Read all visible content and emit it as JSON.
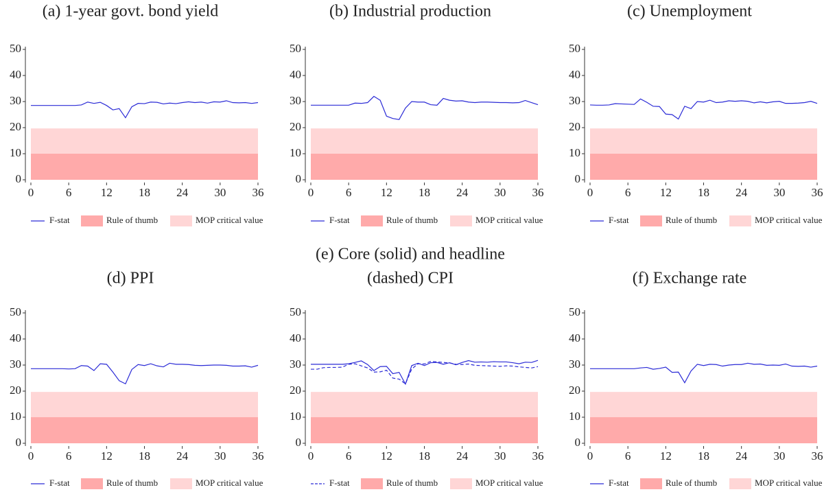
{
  "chart_data": [
    {
      "type": "line",
      "title": [
        "(a) 1-year govt. bond yield"
      ],
      "x": [
        0,
        1,
        2,
        3,
        4,
        5,
        6,
        7,
        8,
        9,
        10,
        11,
        12,
        13,
        14,
        15,
        16,
        17,
        18,
        19,
        20,
        21,
        22,
        23,
        24,
        25,
        26,
        27,
        28,
        29,
        30,
        31,
        32,
        33,
        34,
        35,
        36
      ],
      "series": [
        {
          "name": "F-stat",
          "color": "#2a2ad6",
          "values": [
            28.5,
            28.5,
            28.5,
            28.5,
            28.5,
            28.5,
            28.5,
            28.5,
            28.7,
            29.8,
            29.3,
            29.7,
            28.5,
            26.8,
            27.3,
            23.8,
            28,
            29.3,
            29.2,
            29.8,
            29.7,
            29.1,
            29.4,
            29.2,
            29.6,
            29.9,
            29.6,
            29.8,
            29.4,
            29.9,
            29.8,
            30.3,
            29.6,
            29.5,
            29.6,
            29.3,
            29.6
          ]
        }
      ],
      "bands": [
        {
          "name": "Rule of thumb",
          "color": "#ffaaaa",
          "value": 10
        },
        {
          "name": "MOP critical value",
          "color": "#ffd6d6",
          "value": 19.7
        }
      ],
      "xlim": [
        0,
        36
      ],
      "xticks": [
        0,
        6,
        12,
        18,
        24,
        30,
        36
      ],
      "ylim": [
        0,
        50
      ],
      "yticks": [
        0,
        10,
        20,
        30,
        40,
        50
      ]
    },
    {
      "type": "line",
      "title": [
        "(b) Industrial production"
      ],
      "x": [
        0,
        1,
        2,
        3,
        4,
        5,
        6,
        7,
        8,
        9,
        10,
        11,
        12,
        13,
        14,
        15,
        16,
        17,
        18,
        19,
        20,
        21,
        22,
        23,
        24,
        25,
        26,
        27,
        28,
        29,
        30,
        31,
        32,
        33,
        34,
        35,
        36
      ],
      "series": [
        {
          "name": "F-stat",
          "color": "#2a2ad6",
          "values": [
            28.6,
            28.6,
            28.6,
            28.6,
            28.6,
            28.6,
            28.6,
            29.4,
            29.3,
            29.6,
            32,
            30.5,
            24.4,
            23.5,
            23.1,
            27.5,
            30,
            29.8,
            29.8,
            28.8,
            28.6,
            31.2,
            30.5,
            30.2,
            30.3,
            29.8,
            29.6,
            29.8,
            29.8,
            29.7,
            29.6,
            29.6,
            29.5,
            29.6,
            30.4,
            29.6,
            28.8
          ]
        }
      ],
      "bands": [
        {
          "name": "Rule of thumb",
          "color": "#ffaaaa",
          "value": 10
        },
        {
          "name": "MOP critical value",
          "color": "#ffd6d6",
          "value": 19.7
        }
      ],
      "xlim": [
        0,
        36
      ],
      "xticks": [
        0,
        6,
        12,
        18,
        24,
        30,
        36
      ],
      "ylim": [
        0,
        50
      ],
      "yticks": [
        0,
        10,
        20,
        30,
        40,
        50
      ]
    },
    {
      "type": "line",
      "title": [
        "(c) Unemployment"
      ],
      "x": [
        0,
        1,
        2,
        3,
        4,
        5,
        6,
        7,
        8,
        9,
        10,
        11,
        12,
        13,
        14,
        15,
        16,
        17,
        18,
        19,
        20,
        21,
        22,
        23,
        24,
        25,
        26,
        27,
        28,
        29,
        30,
        31,
        32,
        33,
        34,
        35,
        36
      ],
      "series": [
        {
          "name": "F-stat",
          "color": "#2a2ad6",
          "values": [
            28.7,
            28.6,
            28.6,
            28.7,
            29.2,
            29.1,
            29,
            28.9,
            31,
            29.7,
            28.2,
            28.1,
            25.2,
            25,
            23.3,
            28.2,
            27.3,
            30,
            29.8,
            30.5,
            29.6,
            29.8,
            30.3,
            30.1,
            30.3,
            30.1,
            29.5,
            29.9,
            29.5,
            29.9,
            30.1,
            29.3,
            29.3,
            29.4,
            29.6,
            30.1,
            29.3
          ]
        }
      ],
      "bands": [
        {
          "name": "Rule of thumb",
          "color": "#ffaaaa",
          "value": 10
        },
        {
          "name": "MOP critical value",
          "color": "#ffd6d6",
          "value": 19.7
        }
      ],
      "xlim": [
        0,
        36
      ],
      "xticks": [
        0,
        6,
        12,
        18,
        24,
        30,
        36
      ],
      "ylim": [
        0,
        50
      ],
      "yticks": [
        0,
        10,
        20,
        30,
        40,
        50
      ]
    },
    {
      "type": "line",
      "title": [
        "(d) PPI"
      ],
      "x": [
        0,
        1,
        2,
        3,
        4,
        5,
        6,
        7,
        8,
        9,
        10,
        11,
        12,
        13,
        14,
        15,
        16,
        17,
        18,
        19,
        20,
        21,
        22,
        23,
        24,
        25,
        26,
        27,
        28,
        29,
        30,
        31,
        32,
        33,
        34,
        35,
        36
      ],
      "series": [
        {
          "name": "F-stat",
          "color": "#2a2ad6",
          "values": [
            28.6,
            28.6,
            28.6,
            28.6,
            28.6,
            28.6,
            28.5,
            28.6,
            29.8,
            29.6,
            27.9,
            30.5,
            30.3,
            27.3,
            24,
            22.8,
            28.3,
            30.2,
            29.8,
            30.5,
            29.7,
            29.3,
            30.7,
            30.3,
            30.3,
            30.2,
            29.9,
            29.8,
            29.9,
            30,
            30,
            29.9,
            29.6,
            29.6,
            29.7,
            29.2,
            29.9
          ]
        }
      ],
      "bands": [
        {
          "name": "Rule of thumb",
          "color": "#ffaaaa",
          "value": 10
        },
        {
          "name": "MOP critical value",
          "color": "#ffd6d6",
          "value": 19.7
        }
      ],
      "xlim": [
        0,
        36
      ],
      "xticks": [
        0,
        6,
        12,
        18,
        24,
        30,
        36
      ],
      "ylim": [
        0,
        50
      ],
      "yticks": [
        0,
        10,
        20,
        30,
        40,
        50
      ]
    },
    {
      "type": "line",
      "title": [
        "(e) Core (solid) and headline",
        "(dashed) CPI"
      ],
      "x": [
        0,
        1,
        2,
        3,
        4,
        5,
        6,
        7,
        8,
        9,
        10,
        11,
        12,
        13,
        14,
        15,
        16,
        17,
        18,
        19,
        20,
        21,
        22,
        23,
        24,
        25,
        26,
        27,
        28,
        29,
        30,
        31,
        32,
        33,
        34,
        35,
        36
      ],
      "series": [
        {
          "name": "F-stat",
          "color": "#2a2ad6",
          "dash": true,
          "values": [
            28.4,
            28.4,
            29,
            29.1,
            29.1,
            29.2,
            30.3,
            30.5,
            29.7,
            28.9,
            27.3,
            27.4,
            28,
            25,
            24.6,
            22.8,
            28.5,
            30.5,
            30.4,
            31.4,
            31.2,
            31,
            30.8,
            30.3,
            30.2,
            30.4,
            29.9,
            29.8,
            29.7,
            29.6,
            29.5,
            29.7,
            29.6,
            29.3,
            29.1,
            28.9,
            29.4
          ]
        },
        {
          "color": "#2a2ad6",
          "values": [
            30.3,
            30.3,
            30.3,
            30.3,
            30.3,
            30.3,
            30.5,
            31,
            31.6,
            30.2,
            27.9,
            29.4,
            29.5,
            26.7,
            27.2,
            22.7,
            29.8,
            30.7,
            29.8,
            30.9,
            31,
            30.3,
            30.9,
            30.1,
            31,
            31.7,
            31.1,
            31.2,
            31.1,
            31.3,
            31.2,
            31.2,
            30.9,
            30.5,
            31.1,
            31,
            31.8
          ]
        }
      ],
      "bands": [
        {
          "name": "Rule of thumb",
          "color": "#ffaaaa",
          "value": 10
        },
        {
          "name": "MOP critical value",
          "color": "#ffd6d6",
          "value": 19.7
        }
      ],
      "xlim": [
        0,
        36
      ],
      "xticks": [
        0,
        6,
        12,
        18,
        24,
        30,
        36
      ],
      "ylim": [
        0,
        50
      ],
      "yticks": [
        0,
        10,
        20,
        30,
        40,
        50
      ]
    },
    {
      "type": "line",
      "title": [
        "(f) Exchange rate"
      ],
      "x": [
        0,
        1,
        2,
        3,
        4,
        5,
        6,
        7,
        8,
        9,
        10,
        11,
        12,
        13,
        14,
        15,
        16,
        17,
        18,
        19,
        20,
        21,
        22,
        23,
        24,
        25,
        26,
        27,
        28,
        29,
        30,
        31,
        32,
        33,
        34,
        35,
        36
      ],
      "series": [
        {
          "name": "F-stat",
          "color": "#2a2ad6",
          "values": [
            28.6,
            28.6,
            28.6,
            28.6,
            28.6,
            28.6,
            28.6,
            28.6,
            28.9,
            29.1,
            28.4,
            28.7,
            29.2,
            27.2,
            27.3,
            23.2,
            27.7,
            30.3,
            29.8,
            30.3,
            30.2,
            29.6,
            30,
            30.2,
            30.2,
            30.7,
            30.3,
            30.4,
            29.9,
            30,
            29.9,
            30.4,
            29.6,
            29.5,
            29.6,
            29.2,
            29.6
          ]
        }
      ],
      "bands": [
        {
          "name": "Rule of thumb",
          "color": "#ffaaaa",
          "value": 10
        },
        {
          "name": "MOP critical value",
          "color": "#ffd6d6",
          "value": 19.7
        }
      ],
      "xlim": [
        0,
        36
      ],
      "xticks": [
        0,
        6,
        12,
        18,
        24,
        30,
        36
      ],
      "ylim": [
        0,
        50
      ],
      "yticks": [
        0,
        10,
        20,
        30,
        40,
        50
      ]
    }
  ]
}
